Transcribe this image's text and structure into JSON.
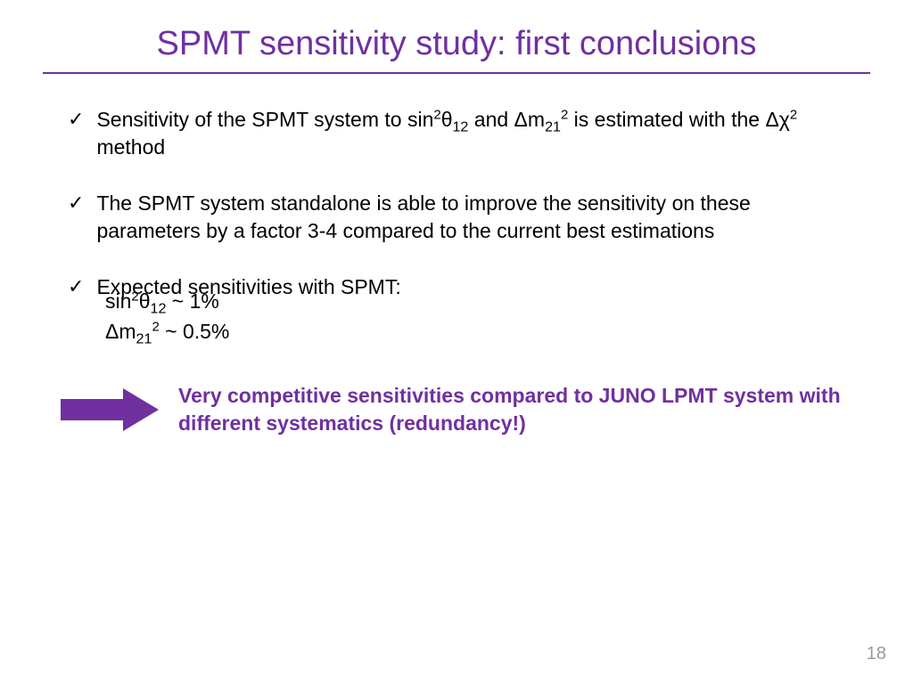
{
  "title": "SPMT sensitivity study: first conclusions",
  "accent_color": "#7030a0",
  "text_color": "#000000",
  "page_bg": "#ffffff",
  "page_number": "18",
  "bullets": [
    {
      "html": "Sensitivity of the SPMT system to sin<sup>2</sup>θ<sub>12</sub> and Δm<sub>21</sub><sup>2</sup> is estimated with the Δχ<sup>2</sup> method"
    },
    {
      "html": "The SPMT system standalone is able to improve the sensitivity on these parameters by a factor 3-4 compared to the current best estimations"
    },
    {
      "html": "Expected sensitivities with SPMT:"
    }
  ],
  "sub_lines": [
    {
      "html": "sin<sup>2</sup>θ<sub>12</sub> ~ 1%"
    },
    {
      "html": "Δm<sub>21</sub><sup>2</sup> ~ 0.5%"
    }
  ],
  "callout": {
    "text": "Very competitive sensitivities compared to JUNO LPMT system with different systematics (redundancy!)",
    "arrow_color": "#7030a0"
  }
}
